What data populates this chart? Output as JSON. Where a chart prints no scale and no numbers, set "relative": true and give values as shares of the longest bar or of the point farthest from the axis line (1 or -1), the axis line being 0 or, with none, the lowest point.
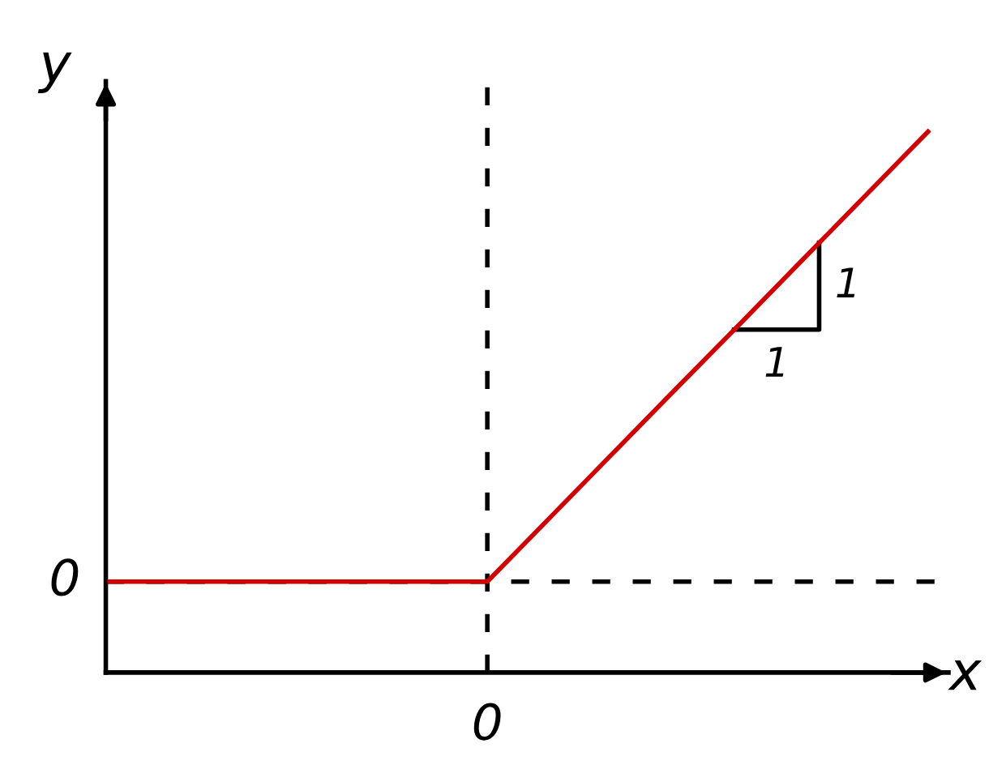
{
  "chart_data": {
    "type": "line",
    "xlabel": "x",
    "ylabel": "y",
    "relative": true,
    "categories": [
      null,
      null,
      null,
      null,
      null,
      null,
      null,
      null,
      null,
      null,
      null,
      null,
      null,
      null
    ],
    "series": [
      {
        "color": "#d40000",
        "values": [
          0.168,
          0.168,
          0.168,
          0.168,
          0.168,
          0.168,
          0.168,
          0.287,
          0.406,
          0.525,
          0.643,
          0.762,
          0.881,
          1
        ]
      }
    ],
    "ref_lines": [
      {
        "axis": "y",
        "value": 0.168,
        "label": "0",
        "color": "#000000",
        "line_style": "dashed"
      }
    ],
    "annotations": [
      "0",
      "1",
      "1"
    ],
    "legend": false,
    "marker": "none",
    "line_style": "solid"
  }
}
